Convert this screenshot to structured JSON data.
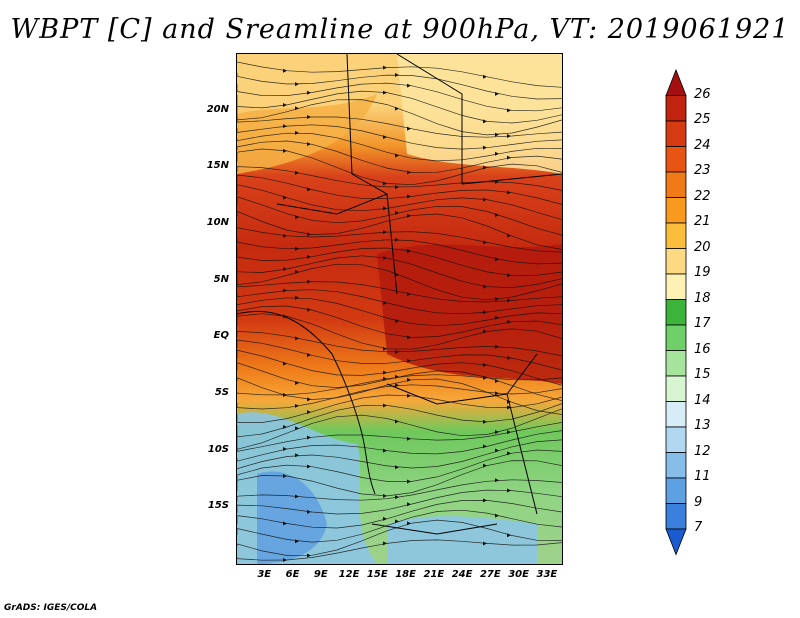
{
  "title": "WBPT [C] and Sreamline at 900hPa, VT: 2019061921",
  "credit": "GrADS: IGES/COLA",
  "map": {
    "lat_ticks": [
      "20N",
      "15N",
      "10N",
      "5N",
      "EQ",
      "5S",
      "10S",
      "15S"
    ],
    "lon_ticks": [
      "3E",
      "6E",
      "9E",
      "12E",
      "15E",
      "18E",
      "21E",
      "24E",
      "27E",
      "30E",
      "33E"
    ],
    "lon_range": [
      0,
      34.5
    ],
    "lat_range": [
      -20,
      25
    ]
  },
  "colorbar": {
    "labels": [
      "26",
      "25",
      "24",
      "23",
      "22",
      "21",
      "20",
      "19",
      "18",
      "17",
      "16",
      "15",
      "14",
      "13",
      "12",
      "11",
      "9",
      "7"
    ],
    "colors": [
      "#a50f0f",
      "#c1230e",
      "#d63a10",
      "#e85513",
      "#f07a17",
      "#f79a1e",
      "#fbbe3c",
      "#fcd982",
      "#fef1b4",
      "#3cb43c",
      "#6fd06a",
      "#a6e39d",
      "#d7f5d0",
      "#d6ecf7",
      "#b2d8f1",
      "#86bde9",
      "#5ea1e2",
      "#3a80dc",
      "#1a5cd0"
    ]
  }
}
